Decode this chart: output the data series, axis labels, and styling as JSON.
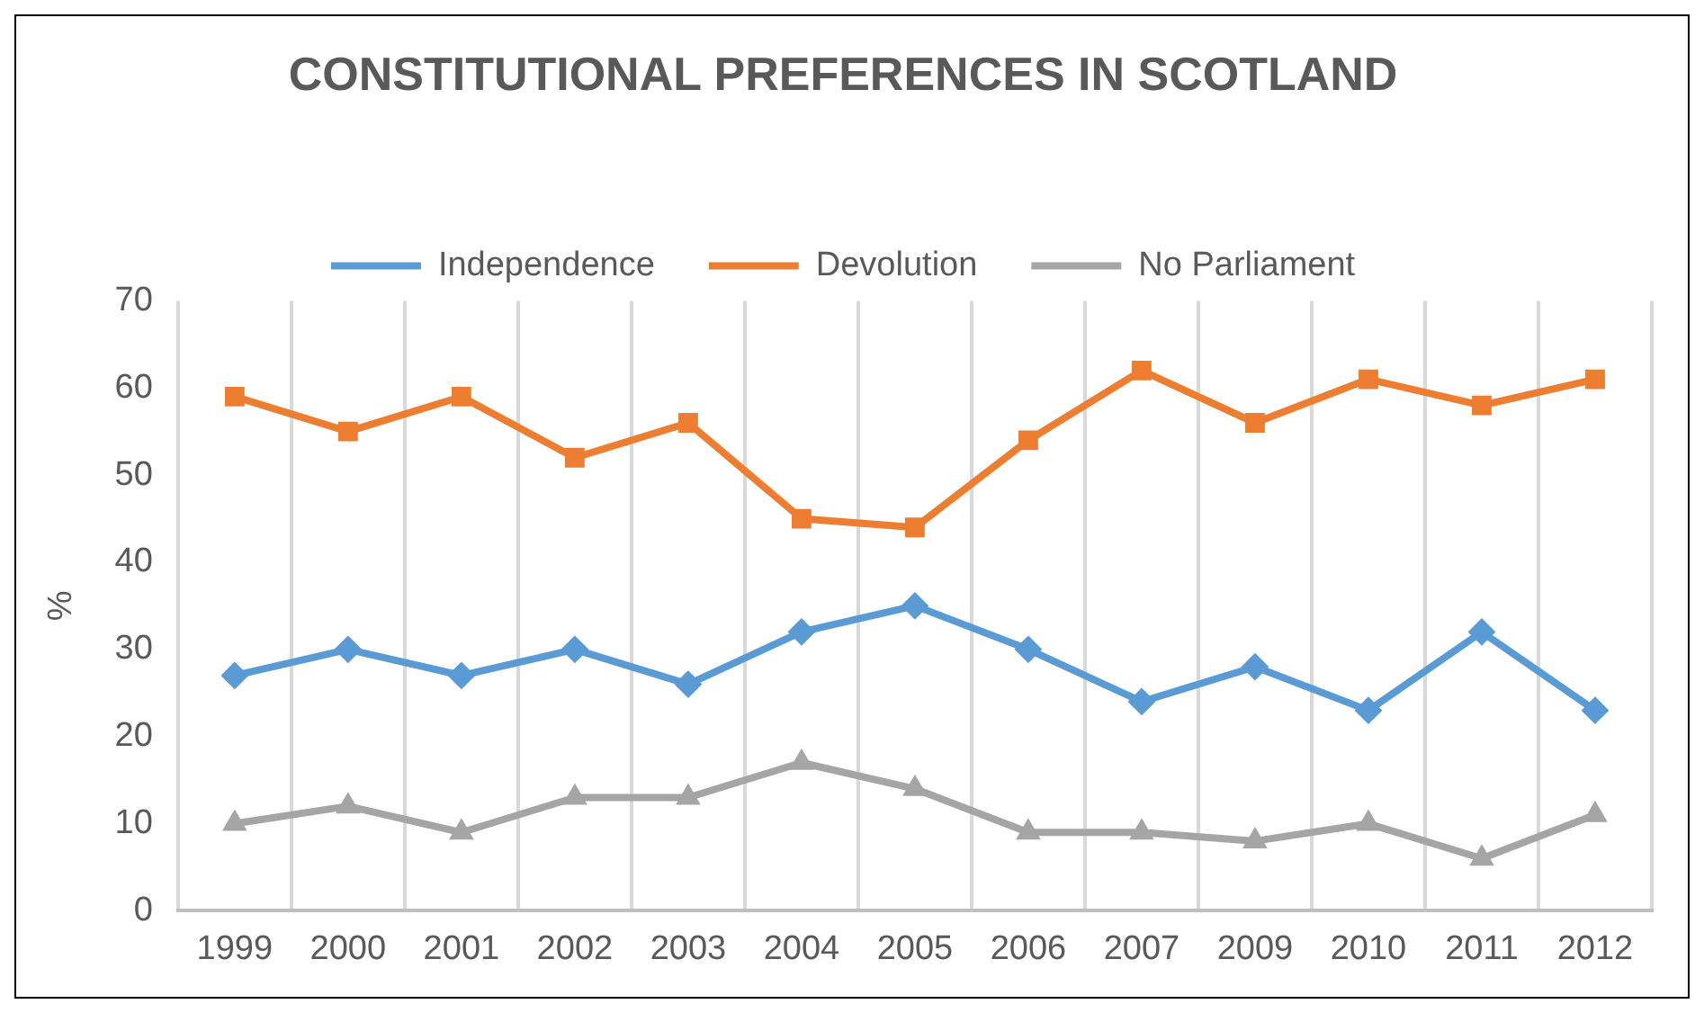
{
  "chart_data": {
    "type": "line",
    "title": "CONSTITUTIONAL PREFERENCES IN SCOTLAND",
    "ylabel": "%",
    "categories": [
      "1999",
      "2000",
      "2001",
      "2002",
      "2003",
      "2004",
      "2005",
      "2006",
      "2007",
      "2009",
      "2010",
      "2011",
      "2012"
    ],
    "series": [
      {
        "name": "Independence",
        "color": "#5b9bd5",
        "marker": "diamond",
        "values": [
          27,
          30,
          27,
          30,
          26,
          32,
          35,
          30,
          24,
          28,
          23,
          32,
          23
        ]
      },
      {
        "name": "Devolution",
        "color": "#ed7d31",
        "marker": "square",
        "values": [
          59,
          55,
          59,
          52,
          56,
          45,
          44,
          54,
          62,
          56,
          61,
          58,
          61
        ]
      },
      {
        "name": "No Parliament",
        "color": "#a5a5a5",
        "marker": "triangle",
        "values": [
          10,
          12,
          9,
          13,
          13,
          17,
          14,
          9,
          9,
          8,
          10,
          6,
          11
        ]
      }
    ],
    "ylim": [
      0,
      70
    ],
    "yticks": [
      0,
      10,
      20,
      30,
      40,
      50,
      60,
      70
    ],
    "grid": "x",
    "legend": "top",
    "line_style": "solid"
  }
}
